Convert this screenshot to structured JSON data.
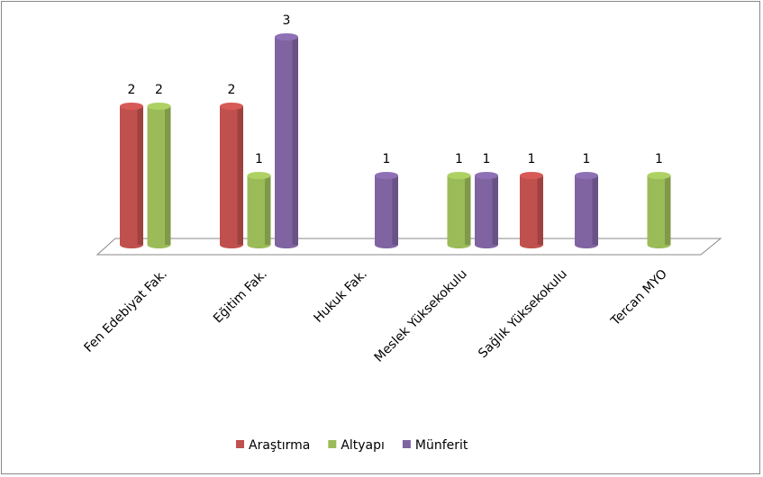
{
  "chart_data": {
    "type": "bar3d",
    "categories": [
      "Fen Edebiyat Fak.",
      "Eğitim Fak.",
      "Hukuk Fak.",
      "Meslek Yüksekokulu",
      "Sağlık Yüksekokulu",
      "Tercan MYO"
    ],
    "series": [
      {
        "name": "Araştırma",
        "color": "#c0504d",
        "values": [
          2,
          2,
          null,
          null,
          1,
          null
        ]
      },
      {
        "name": "Altyapı",
        "color": "#9bbb59",
        "values": [
          2,
          1,
          null,
          1,
          null,
          1
        ]
      },
      {
        "name": "Münferit",
        "color": "#8064a2",
        "values": [
          null,
          3,
          1,
          1,
          1,
          null
        ]
      }
    ],
    "legend": "bottom"
  }
}
